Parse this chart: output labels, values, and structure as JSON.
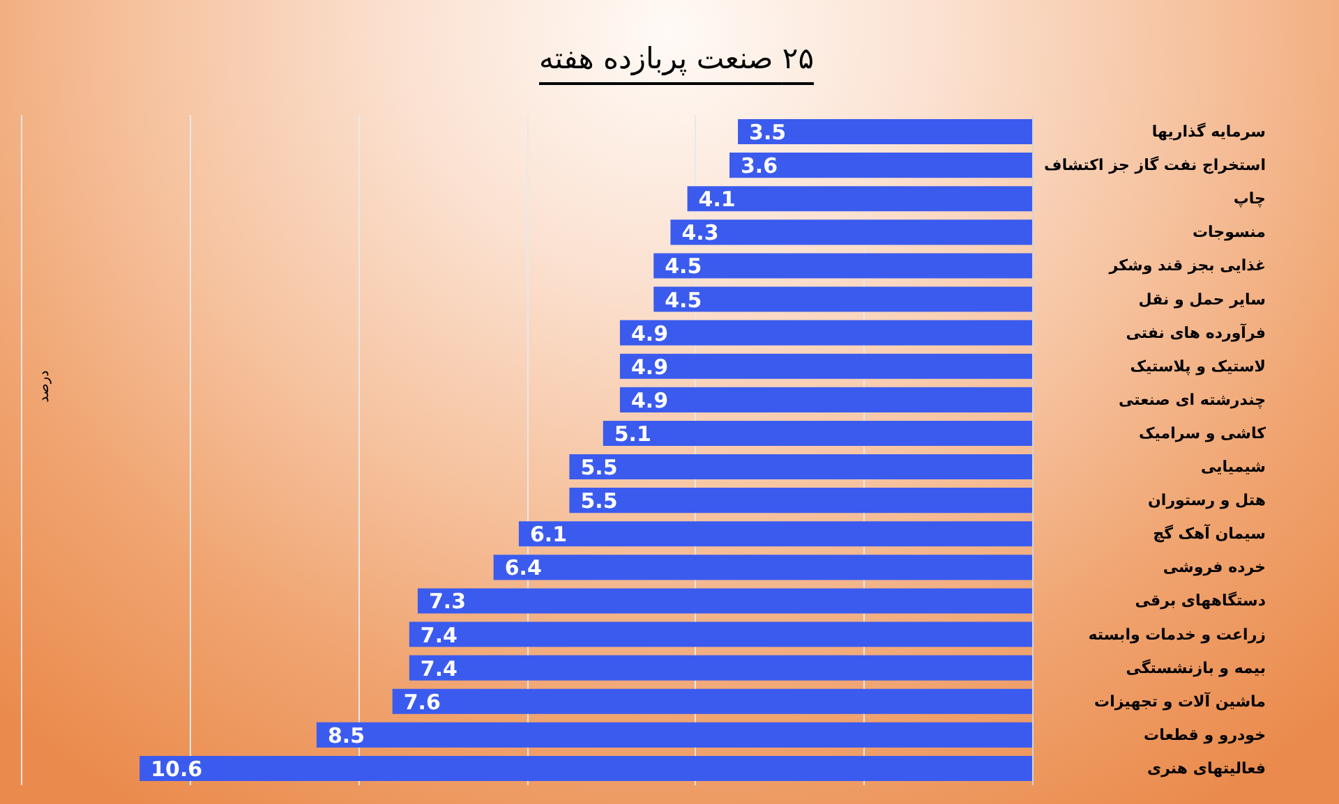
{
  "chart_data": {
    "type": "bar",
    "orientation": "horizontal",
    "title": "۲۵ صنعت پربازده هفته",
    "annotations": [
      "درصد"
    ],
    "categories": [
      "سرمایه گذاریها",
      "استخراج نفت گاز جز اکتشاف",
      "چاپ",
      "منسوجات",
      "غذایی بجز قند وشکر",
      "سایر حمل و نقل",
      "فرآورده های نفتی",
      "لاستیک و پلاستیک",
      "چندرشته ای صنعتی",
      "کاشی و سرامیک",
      "شیمیایی",
      "هتل و رستوران",
      "سیمان آهک گچ",
      "خرده فروشی",
      "دستگاههای برقی",
      "زراعت و خدمات وابسته",
      "بیمه و بازنشستگی",
      "ماشین آلات و تجهیزات",
      "خودرو و قطعات",
      "فعالیتهای هنری"
    ],
    "values": [
      3.5,
      3.6,
      4.1,
      4.3,
      4.5,
      4.5,
      4.9,
      4.9,
      4.9,
      5.1,
      5.5,
      5.5,
      6.1,
      6.4,
      7.3,
      7.4,
      7.4,
      7.6,
      8.5,
      10.6
    ],
    "color": "#3b5bef",
    "xlim": [
      12,
      0
    ],
    "xticks": [
      {
        "value": 2,
        "label": null
      },
      {
        "value": 4,
        "label": null
      },
      {
        "value": 6,
        "label": null
      },
      {
        "value": 8,
        "label": null
      },
      {
        "value": 10,
        "label": null
      },
      {
        "value": 12,
        "label": null
      }
    ],
    "grid": "x",
    "tick_labels": "y",
    "data_labels": true
  }
}
